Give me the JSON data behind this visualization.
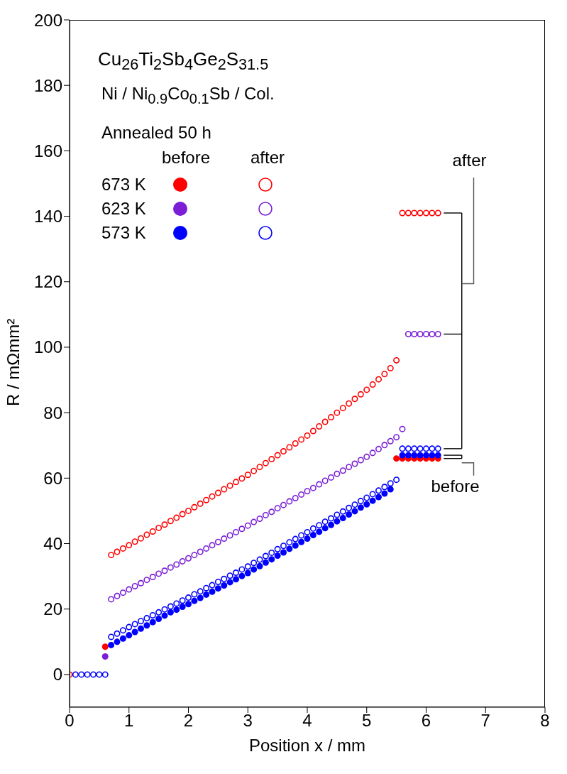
{
  "chart_data": {
    "type": "scatter",
    "xlabel": "Position x / mm",
    "ylabel": "R / mΩmm²",
    "xlim": [
      0,
      8
    ],
    "xticks": [
      0,
      1,
      2,
      3,
      4,
      5,
      6,
      7,
      8
    ],
    "ylim": [
      -10,
      200
    ],
    "yticks": [
      0,
      20,
      40,
      60,
      80,
      100,
      120,
      140,
      160,
      180,
      200
    ],
    "marker": "circle",
    "legend": "top left",
    "grid": false,
    "annotations": [
      "Cu$_{26}$Ti$_{2}$Sb$_{4}$Ge$_{2}$S$_{31.5}$",
      "Ni / Ni$_{0.9}$Co$_{0.1}$Sb / Col.",
      "Annealed 50 h",
      "before",
      "after",
      "after",
      "before"
    ],
    "series": [
      {
        "name": "673 K",
        "color": "#ff0000",
        "x": [
          0.6,
          5.5,
          5.6,
          5.7,
          5.8,
          5.9,
          6.0,
          6.1,
          6.2
        ],
        "values": [
          8.5,
          66,
          66,
          66,
          66,
          66,
          66,
          66,
          66
        ]
      },
      {
        "name": "623 K",
        "color": "#7a1fd6",
        "x": [
          0.6
        ],
        "values": [
          5.5
        ]
      },
      {
        "name": "573 K",
        "color": "#0000ff",
        "x": [
          0.7,
          0.8,
          0.9,
          1.0,
          1.1,
          1.2,
          1.3,
          1.4,
          1.5,
          1.6,
          1.7,
          1.8,
          1.9,
          2.0,
          2.1,
          2.2,
          2.3,
          2.4,
          2.5,
          2.6,
          2.7,
          2.8,
          2.9,
          3.0,
          3.1,
          3.2,
          3.3,
          3.4,
          3.5,
          3.6,
          3.7,
          3.8,
          3.9,
          4.0,
          4.1,
          4.2,
          4.3,
          4.4,
          4.5,
          4.6,
          4.7,
          4.8,
          4.9,
          5.0,
          5.1,
          5.2,
          5.3,
          5.4,
          5.5,
          5.6,
          5.7,
          5.8,
          5.9,
          6.0,
          6.1,
          6.2
        ],
        "values": [
          9,
          10,
          11,
          12,
          13,
          14,
          15,
          16,
          17,
          18,
          19,
          19.8,
          20.7,
          21.5,
          22.5,
          23.4,
          24.4,
          25.3,
          26.3,
          27.2,
          28.2,
          29.1,
          30.1,
          31,
          32.1,
          33.1,
          34.2,
          35.2,
          36.3,
          37.3,
          38.4,
          39.4,
          40.5,
          41.5,
          42.6,
          43.6,
          44.7,
          45.7,
          46.8,
          47.8,
          48.9,
          49.9,
          51,
          52,
          53.1,
          54.2,
          55.3,
          56.6,
          null,
          67,
          67,
          67,
          67,
          67,
          67,
          67
        ]
      },
      {
        "color": "#ff0000",
        "x": [
          0,
          0.7,
          0.8,
          0.9,
          1.0,
          1.1,
          1.2,
          1.3,
          1.4,
          1.5,
          1.6,
          1.7,
          1.8,
          1.9,
          2.0,
          2.1,
          2.2,
          2.3,
          2.4,
          2.5,
          2.6,
          2.7,
          2.8,
          2.9,
          3.0,
          3.1,
          3.2,
          3.3,
          3.4,
          3.5,
          3.6,
          3.7,
          3.8,
          3.9,
          4.0,
          4.1,
          4.2,
          4.3,
          4.4,
          4.5,
          4.6,
          4.7,
          4.8,
          4.9,
          5.0,
          5.1,
          5.2,
          5.3,
          5.4,
          5.5,
          5.6,
          5.7,
          5.8,
          5.9,
          6.0,
          6.1,
          6.2
        ],
        "values": [
          0,
          36.5,
          37.5,
          38.5,
          39.5,
          40.6,
          41.6,
          42.7,
          43.7,
          44.8,
          45.8,
          46.9,
          47.9,
          49,
          50,
          51.1,
          52.2,
          53.3,
          54.4,
          55.5,
          56.6,
          57.7,
          58.8,
          59.9,
          61,
          62.2,
          63.4,
          64.6,
          65.8,
          67,
          68.2,
          69.4,
          70.6,
          71.8,
          73,
          74.4,
          75.8,
          77.2,
          78.6,
          80,
          81.4,
          82.8,
          84.2,
          85.6,
          87,
          88.6,
          90.2,
          91.8,
          93.6,
          96,
          141,
          141,
          141,
          141,
          141,
          141,
          141
        ]
      },
      {
        "color": "#7a1fd6",
        "x": [
          0.7,
          0.8,
          0.9,
          1.0,
          1.1,
          1.2,
          1.3,
          1.4,
          1.5,
          1.6,
          1.7,
          1.8,
          1.9,
          2.0,
          2.1,
          2.2,
          2.3,
          2.4,
          2.5,
          2.6,
          2.7,
          2.8,
          2.9,
          3.0,
          3.1,
          3.2,
          3.3,
          3.4,
          3.5,
          3.6,
          3.7,
          3.8,
          3.9,
          4.0,
          4.1,
          4.2,
          4.3,
          4.4,
          4.5,
          4.6,
          4.7,
          4.8,
          4.9,
          5.0,
          5.1,
          5.2,
          5.3,
          5.4,
          5.5,
          5.6,
          5.7,
          5.8,
          5.9,
          6.0,
          6.1,
          6.2
        ],
        "values": [
          23,
          24,
          25,
          26,
          27,
          27.9,
          28.9,
          29.8,
          30.8,
          31.7,
          32.7,
          33.6,
          34.6,
          35.5,
          36.5,
          37.5,
          38.5,
          39.5,
          40.5,
          41.5,
          42.5,
          43.5,
          44.5,
          45.5,
          46.6,
          47.6,
          48.7,
          49.7,
          50.8,
          51.8,
          52.9,
          53.9,
          55,
          56,
          57,
          58.1,
          59.2,
          60.2,
          61.3,
          62.3,
          63.4,
          64.4,
          65.5,
          66.5,
          67.7,
          68.9,
          70.1,
          71.3,
          72.5,
          75,
          104,
          104,
          104,
          104,
          104,
          104
        ]
      },
      {
        "color": "#0000ff",
        "x": [
          0.1,
          0.2,
          0.3,
          0.4,
          0.5,
          0.6,
          0.7,
          0.8,
          0.9,
          1.0,
          1.1,
          1.2,
          1.3,
          1.4,
          1.5,
          1.6,
          1.7,
          1.8,
          1.9,
          2.0,
          2.1,
          2.2,
          2.3,
          2.4,
          2.5,
          2.6,
          2.7,
          2.8,
          2.9,
          3.0,
          3.1,
          3.2,
          3.3,
          3.4,
          3.5,
          3.6,
          3.7,
          3.8,
          3.9,
          4.0,
          4.1,
          4.2,
          4.3,
          4.4,
          4.5,
          4.6,
          4.7,
          4.8,
          4.9,
          5.0,
          5.1,
          5.2,
          5.3,
          5.4,
          5.5,
          5.6,
          5.7,
          5.8,
          5.9,
          6.0,
          6.1,
          6.2
        ],
        "values": [
          0,
          0,
          0,
          0,
          0,
          0,
          11.5,
          12.5,
          13.5,
          14.5,
          15.4,
          16.3,
          17.2,
          18.1,
          19,
          19.9,
          20.8,
          21.7,
          22.6,
          23.5,
          24.5,
          25.4,
          26.4,
          27.3,
          28.3,
          29.2,
          30.2,
          31.1,
          32.1,
          33,
          34.1,
          35.1,
          36.2,
          37.2,
          38.3,
          39.3,
          40.4,
          41.4,
          42.5,
          43.5,
          44.6,
          45.6,
          46.7,
          47.7,
          48.8,
          49.8,
          50.9,
          51.9,
          53,
          54,
          55.1,
          56.2,
          57.3,
          58.4,
          59.5,
          69,
          69,
          69,
          69,
          69,
          69,
          69
        ]
      }
    ]
  }
}
